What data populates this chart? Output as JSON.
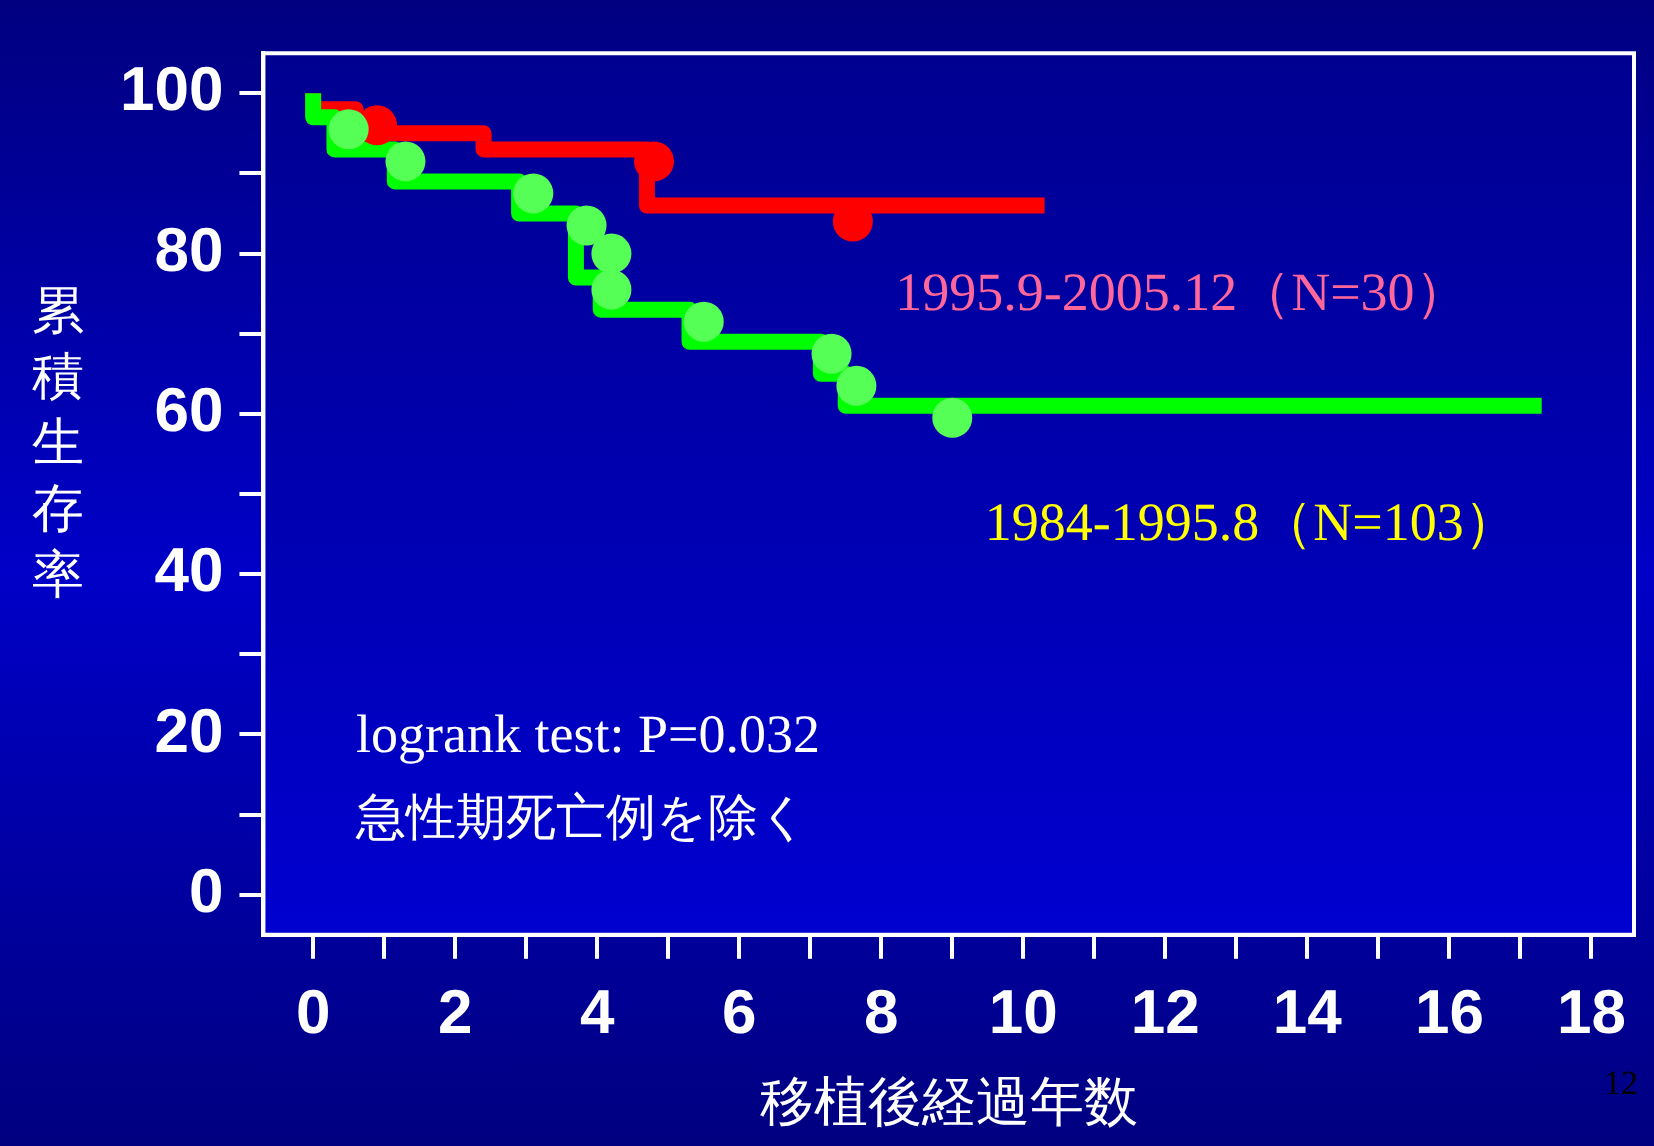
{
  "chart_data": {
    "type": "step",
    "xlabel": "移植後経過年数",
    "ylabel": "累積生存率",
    "xlim": [
      -0.7,
      18.6
    ],
    "ylim": [
      -5,
      105
    ],
    "xticks": [
      0,
      {
        "value": 1,
        "label": null
      },
      2,
      {
        "value": 3,
        "label": null
      },
      4,
      {
        "value": 5,
        "label": null
      },
      6,
      {
        "value": 7,
        "label": null
      },
      8,
      {
        "value": 9,
        "label": null
      },
      10,
      {
        "value": 11,
        "label": null
      },
      12,
      {
        "value": 13,
        "label": null
      },
      14,
      {
        "value": 15,
        "label": null
      },
      16,
      {
        "value": 17,
        "label": null
      },
      18
    ],
    "yticks": [
      0,
      {
        "value": 10,
        "label": null
      },
      20,
      {
        "value": 30,
        "label": null
      },
      40,
      {
        "value": 50,
        "label": null
      },
      60,
      {
        "value": 70,
        "label": null
      },
      80,
      {
        "value": 90,
        "label": null
      },
      100
    ],
    "legend": false,
    "line_style": "solid",
    "series": [
      {
        "name": "1984-1995.8（N=103）",
        "color": "#00ff00",
        "marker": "none",
        "x": [
          0,
          0.3,
          1.15,
          2.9,
          3.7,
          4.05,
          5.3,
          7.15,
          7.5,
          8.8,
          17.3
        ],
        "values": [
          100,
          97,
          93,
          89,
          85,
          77,
          73,
          69,
          65,
          61,
          61
        ]
      },
      {
        "type": "scatter",
        "color": "#55ff55",
        "marker": "circle",
        "x": [
          0.5,
          1.3,
          3.1,
          3.85,
          4.2,
          4.2,
          5.5,
          7.3,
          7.65,
          9.0
        ],
        "values": [
          95.5,
          91.5,
          87.5,
          83.5,
          80,
          75.5,
          71.5,
          67.5,
          63.5,
          59.5
        ]
      },
      {
        "name": "1995.9-2005.12（N=30）",
        "color": "#ff0000",
        "marker": "none",
        "x": [
          0,
          0.6,
          2.4,
          4.7,
          7.4,
          10.3
        ],
        "values": [
          100,
          98,
          95,
          93,
          86,
          86
        ]
      },
      {
        "type": "scatter",
        "color": "#ff0000",
        "marker": "circle",
        "x": [
          0.9,
          4.8,
          7.6
        ],
        "values": [
          96,
          91.5,
          84
        ]
      }
    ],
    "annotations": [
      "logrank test: P=0.032",
      "急性期死亡例を除く",
      "12"
    ]
  }
}
